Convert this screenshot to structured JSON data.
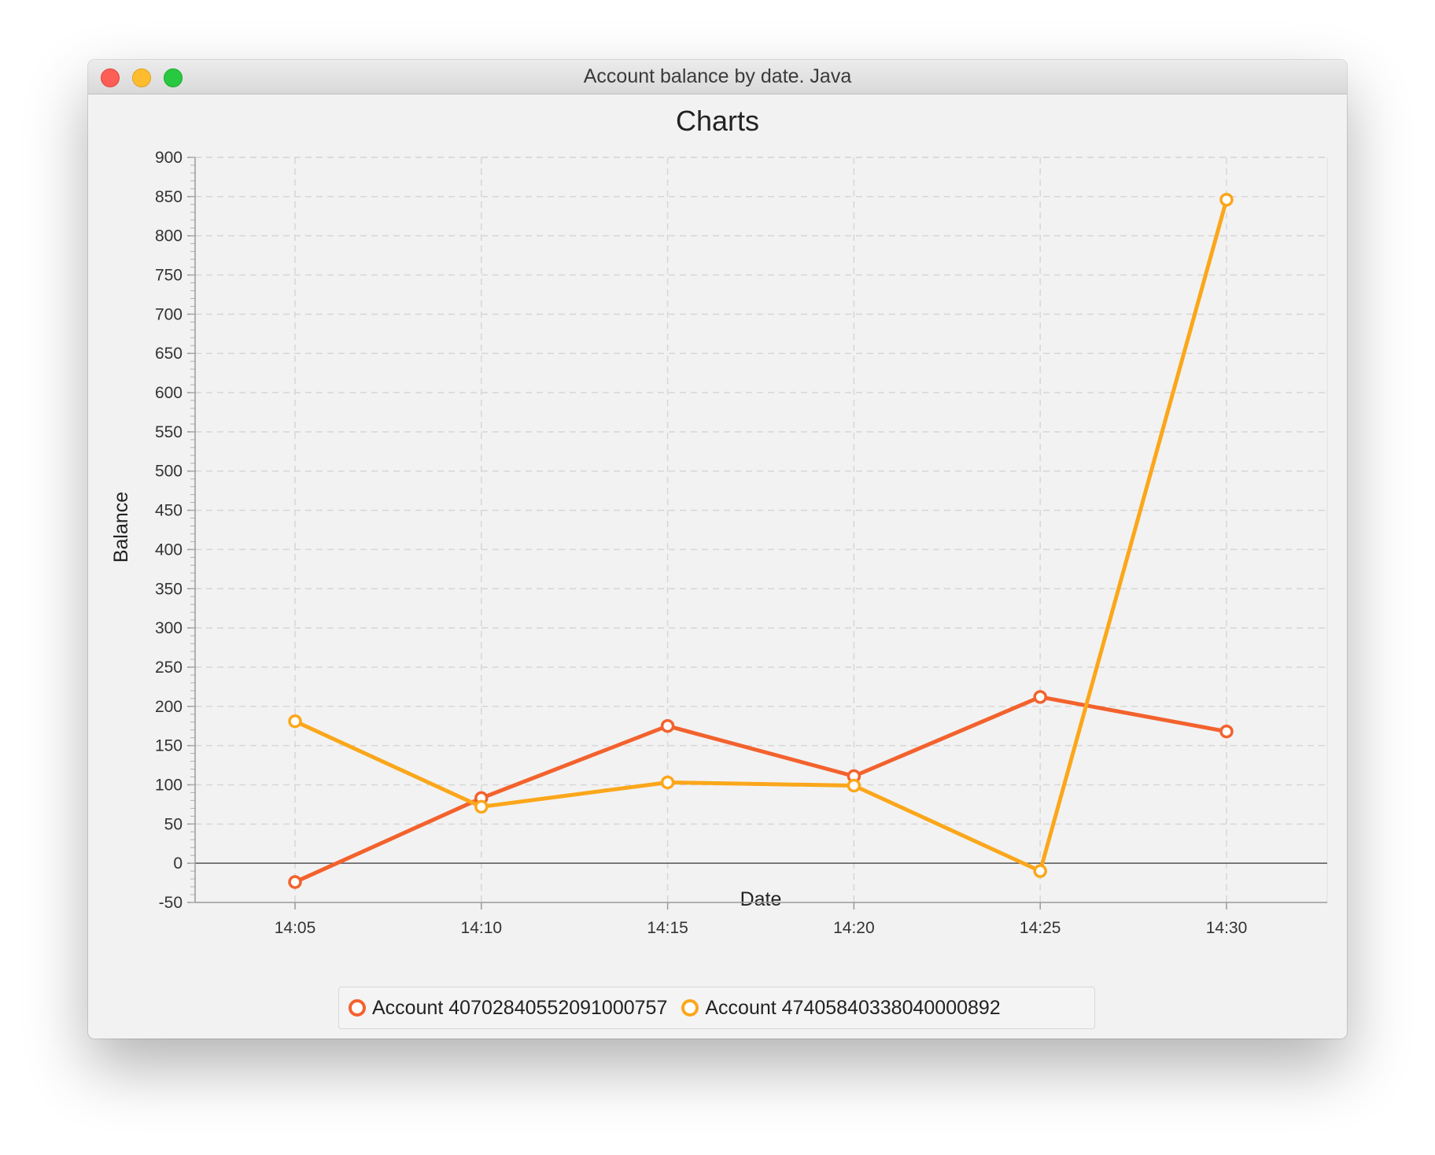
{
  "window": {
    "title": "Account balance by date. Java"
  },
  "chart_data": {
    "type": "line",
    "title": "Charts",
    "xlabel": "Date",
    "ylabel": "Balance",
    "categories": [
      "14:05",
      "14:10",
      "14:15",
      "14:20",
      "14:25",
      "14:30"
    ],
    "ylim": [
      -50,
      900
    ],
    "yticks": [
      -50,
      0,
      50,
      100,
      150,
      200,
      250,
      300,
      350,
      400,
      450,
      500,
      550,
      600,
      650,
      700,
      750,
      800,
      850,
      900
    ],
    "grid": true,
    "legend_position": "bottom",
    "series": [
      {
        "name": "Account 40702840552091000757",
        "color": "#f3622d",
        "values": [
          -24,
          83,
          175,
          111,
          212,
          168
        ]
      },
      {
        "name": "Account 47405840338040000892",
        "color": "#fba71b",
        "values": [
          181,
          72,
          103,
          99,
          -10,
          846
        ]
      }
    ]
  }
}
